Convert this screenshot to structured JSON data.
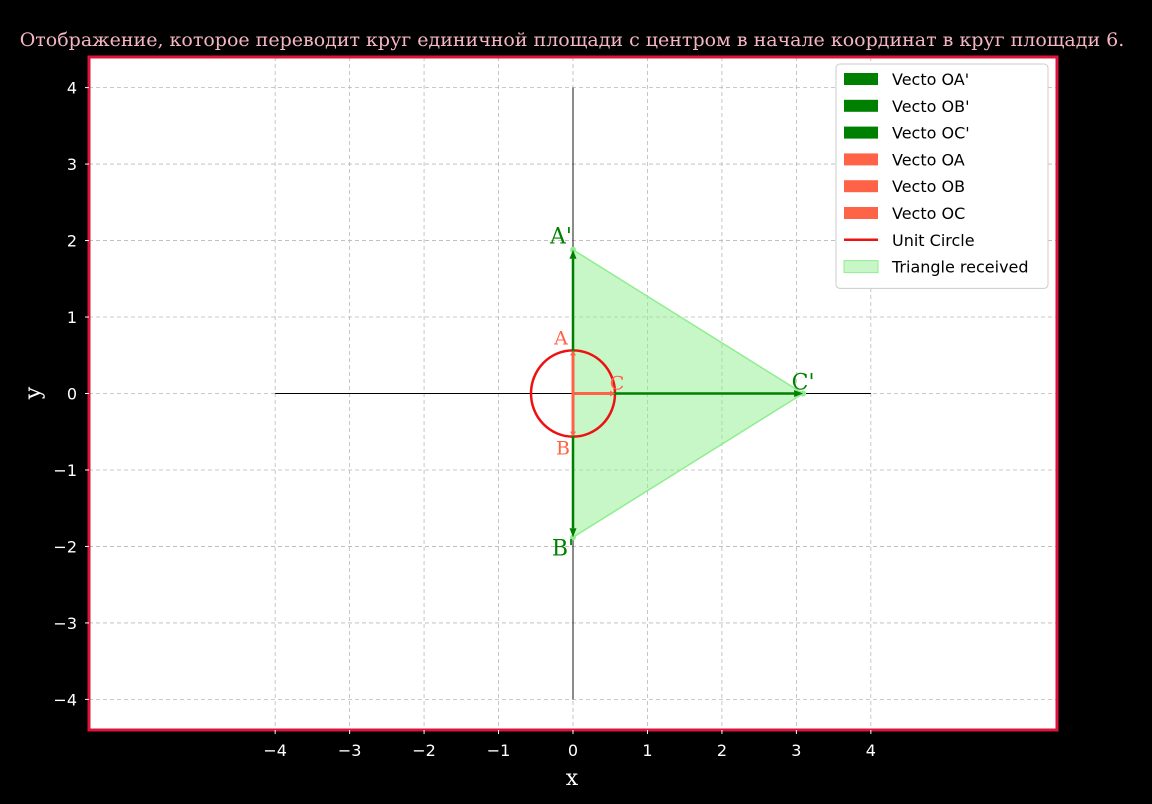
{
  "chart_data": {
    "type": "line",
    "title": "Отображение, которое переводит круг единичной площади с центром в начале координат в круг площади 6.",
    "xlabel": "x",
    "ylabel": "y",
    "xlim": [
      -6.5,
      6.5
    ],
    "ylim": [
      -4.4,
      4.4
    ],
    "xticks": [
      -4,
      -3,
      -2,
      -1,
      0,
      1,
      2,
      3,
      4
    ],
    "yticks": [
      -4,
      -3,
      -2,
      -1,
      0,
      1,
      2,
      3,
      4
    ],
    "grid": true,
    "legend_position": "top-right",
    "axes_lines": {
      "x_range": [
        -4,
        4
      ],
      "y_range": [
        -4,
        4
      ]
    },
    "unit_circle": {
      "name": "Unit Circle",
      "center": [
        0,
        0
      ],
      "radius": 0.564,
      "color": "#ee1111"
    },
    "triangle": {
      "name": "Triangle received",
      "vertices": [
        [
          0,
          1.88
        ],
        [
          3.09,
          0
        ],
        [
          0,
          -1.88
        ]
      ],
      "color": "#90ee90"
    },
    "vectors": [
      {
        "name": "Vecto OA'",
        "to": [
          0,
          1.88
        ],
        "color": "#008000",
        "label": "A'"
      },
      {
        "name": "Vecto OB'",
        "to": [
          0,
          -1.88
        ],
        "color": "#008000",
        "label": "B'"
      },
      {
        "name": "Vecto OC'",
        "to": [
          3.09,
          0
        ],
        "color": "#008000",
        "label": "C'"
      },
      {
        "name": "Vecto OA",
        "to": [
          0,
          0.564
        ],
        "color": "#ff6347",
        "label": "A"
      },
      {
        "name": "Vecto OB",
        "to": [
          0,
          -0.564
        ],
        "color": "#ff6347",
        "label": "B"
      },
      {
        "name": "Vecto OC",
        "to": [
          0.564,
          0
        ],
        "color": "#ff6347",
        "label": "C"
      }
    ],
    "frame_color": "#dc143c",
    "title_color": "#f4b6c2"
  }
}
